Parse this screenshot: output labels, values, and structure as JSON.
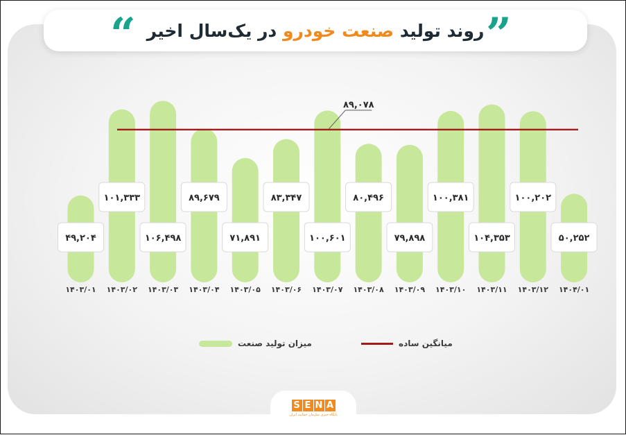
{
  "header": {
    "title_part1": "روند تولید",
    "title_accent": "صنعت خودرو",
    "title_part2": "در یک‌سال اخیر"
  },
  "colors": {
    "bar": "#c7e79a",
    "average_line": "#a21a1a",
    "title_accent": "#f08a1c",
    "quote": "#19a38d",
    "logo": "#f08a1c"
  },
  "chart_data": {
    "type": "bar",
    "categories": [
      "۱۴۰۳/۰۱",
      "۱۴۰۳/۰۲",
      "۱۴۰۳/۰۳",
      "۱۴۰۳/۰۴",
      "۱۴۰۳/۰۵",
      "۱۴۰۳/۰۶",
      "۱۴۰۳/۰۷",
      "۱۴۰۳/۰۸",
      "۱۴۰۳/۰۹",
      "۱۴۰۳/۱۰",
      "۱۴۰۳/۱۱",
      "۱۴۰۳/۱۲",
      "۱۴۰۴/۰۱"
    ],
    "series": [
      {
        "name": "میزان تولید صنعت",
        "values": [
          49204,
          101333,
          106498,
          89679,
          71891,
          83347,
          100601,
          80496,
          79898,
          100381,
          104353,
          100202,
          50252
        ],
        "labels": [
          "۴۹,۲۰۴",
          "۱۰۱,۳۳۳",
          "۱۰۶,۴۹۸",
          "۸۹,۶۷۹",
          "۷۱,۸۹۱",
          "۸۳,۳۴۷",
          "۱۰۰,۶۰۱",
          "۸۰,۴۹۶",
          "۷۹,۸۹۸",
          "۱۰۰,۳۸۱",
          "۱۰۴,۳۵۳",
          "۱۰۰,۲۰۲",
          "۵۰,۲۵۲"
        ]
      }
    ],
    "average": {
      "name": "میانگین ساده",
      "value": 89078,
      "label": "۸۹,۰۷۸"
    },
    "ylim": [
      0,
      110000
    ]
  },
  "legend": {
    "production_label": "میزان تولید صنعت",
    "average_label": "میانگین ساده"
  },
  "logo": {
    "letters": [
      "S",
      "E",
      "N",
      "A"
    ],
    "tagline": "پایگاه خبری سازمان حمایت ایران"
  }
}
